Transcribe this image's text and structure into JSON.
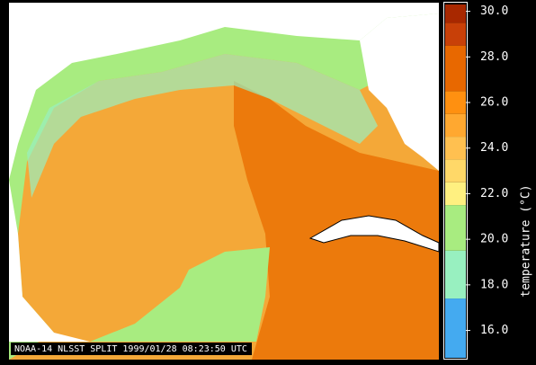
{
  "caption": "NOAA-14 NLSST SPLIT 1999/01/28 08:23:50 UTC",
  "colorbar": {
    "label": "temperature (°C)",
    "range": [
      14.8,
      30.3
    ],
    "ticks": [
      {
        "value": 16,
        "label": "16.0"
      },
      {
        "value": 18,
        "label": "18.0"
      },
      {
        "value": 20,
        "label": "20.0"
      },
      {
        "value": 22,
        "label": "22.0"
      },
      {
        "value": 24,
        "label": "24.0"
      },
      {
        "value": 26,
        "label": "26.0"
      },
      {
        "value": 28,
        "label": "28.0"
      },
      {
        "value": 30,
        "label": "30.0"
      }
    ],
    "bands": [
      {
        "from": 14.8,
        "to": 17.4,
        "color": "#44aaf0"
      },
      {
        "from": 17.4,
        "to": 19.5,
        "color": "#98f0c0"
      },
      {
        "from": 19.5,
        "to": 21.5,
        "color": "#a8ec80"
      },
      {
        "from": 21.5,
        "to": 22.5,
        "color": "#fff080"
      },
      {
        "from": 22.5,
        "to": 23.5,
        "color": "#ffd868"
      },
      {
        "from": 23.5,
        "to": 24.5,
        "color": "#ffc050"
      },
      {
        "from": 24.5,
        "to": 25.5,
        "color": "#ffa830"
      },
      {
        "from": 25.5,
        "to": 26.5,
        "color": "#ff9010"
      },
      {
        "from": 26.5,
        "to": 28.5,
        "color": "#e86800"
      },
      {
        "from": 28.5,
        "to": 29.5,
        "color": "#c84008"
      },
      {
        "from": 29.5,
        "to": 30.3,
        "color": "#a82800"
      }
    ]
  }
}
